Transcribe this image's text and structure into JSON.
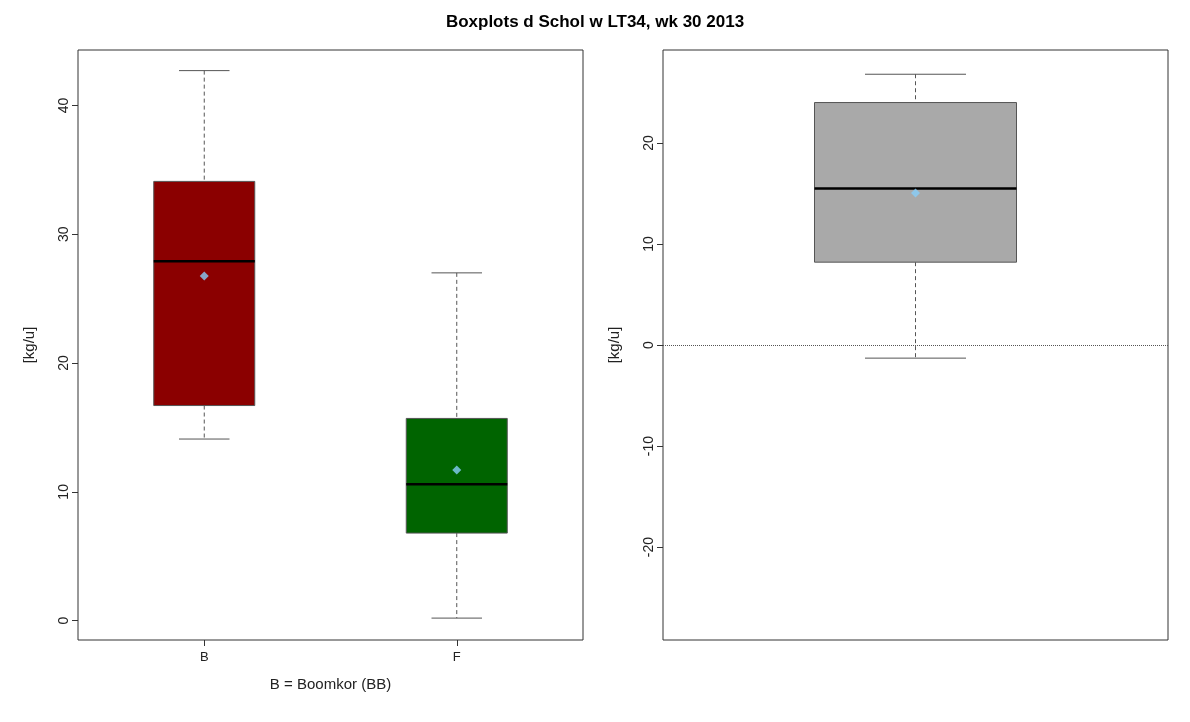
{
  "chart_data": [
    {
      "type": "box",
      "title": "Boxplots d Schol w LT34, wk 30 2013",
      "ylabel": "[kg/u]",
      "xlabel": "B = Boomkor (BB)",
      "categories": [
        "B",
        "F"
      ],
      "colors": [
        "#8b0000",
        "#006400"
      ],
      "marker": "diamond",
      "ylim": [
        -1.5,
        44.3
      ],
      "yticks": [
        0,
        10,
        20,
        30,
        40
      ],
      "grid": false,
      "boxes": [
        {
          "low": 14.1,
          "q1": 16.7,
          "median": 27.9,
          "q3": 34.1,
          "high": 42.7,
          "mean": 26.75
        },
        {
          "low": 0.2,
          "q1": 6.8,
          "median": 10.6,
          "q3": 15.7,
          "high": 27.0,
          "mean": 11.7
        }
      ]
    },
    {
      "type": "box",
      "ylabel": "[kg/u]",
      "categories": [
        null
      ],
      "colors": [
        "#a9a9a9"
      ],
      "marker": "diamond",
      "ylim": [
        -29.2,
        29.2
      ],
      "yticks": [
        -20,
        -10,
        0,
        10,
        20
      ],
      "grid": false,
      "ref_lines": [
        {
          "axis": "y",
          "value": 0,
          "line_style": "dotted"
        }
      ],
      "boxes": [
        {
          "low": -1.3,
          "q1": 8.2,
          "median": 15.5,
          "q3": 24.0,
          "high": 26.8,
          "mean": 15.05
        }
      ]
    }
  ]
}
